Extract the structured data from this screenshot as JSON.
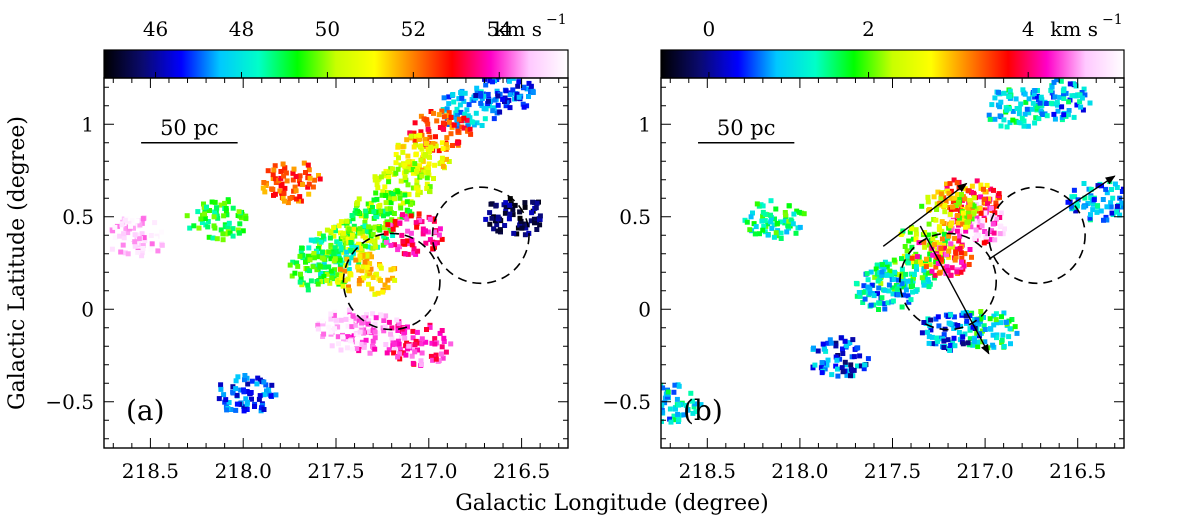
{
  "figure": {
    "xlabel": "Galactic Longitude (degree)",
    "ylabel": "Galactic Latitude (degree)"
  },
  "chart_data": [
    {
      "type": "heatmap",
      "panel_label": "(a)",
      "quantity": "velocity",
      "colorbar": {
        "ticks": [
          "46",
          "48",
          "50",
          "52",
          "54"
        ],
        "tick_values": [
          46,
          48,
          50,
          52,
          54
        ],
        "range": [
          44.8,
          55.6
        ],
        "unit": "km s",
        "unit_exp": "−1",
        "colors": [
          "#000000",
          "#0a0a6e",
          "#0000ff",
          "#00c8ff",
          "#00ffc8",
          "#00ff00",
          "#c8ff00",
          "#ffff00",
          "#ff8000",
          "#ff0000",
          "#ff00c8",
          "#ffc8ff",
          "#ffffff"
        ]
      },
      "xlim": [
        218.75,
        216.25
      ],
      "ylim": [
        -0.75,
        1.25
      ],
      "xticks": [
        "218.5",
        "218.0",
        "217.5",
        "217.0",
        "216.5"
      ],
      "xtick_values": [
        218.5,
        218.0,
        217.5,
        217.0,
        216.5
      ],
      "yticks": [
        "−0.5",
        "0",
        "0.5",
        "1"
      ],
      "ytick_values": [
        -0.5,
        0,
        0.5,
        1
      ],
      "scalebar": {
        "label": "50 pc",
        "from_l": 218.55,
        "to_l": 218.03,
        "b": 0.9
      },
      "circles": [
        {
          "l": 217.2,
          "b": 0.15,
          "r": 0.26
        },
        {
          "l": 216.72,
          "b": 0.4,
          "r": 0.26
        }
      ],
      "clumps": [
        {
          "l": 216.8,
          "b": 1.1,
          "v": 47.5
        },
        {
          "l": 216.6,
          "b": 1.18,
          "v": 46.8
        },
        {
          "l": 216.95,
          "b": 0.98,
          "v": 52.5
        },
        {
          "l": 217.05,
          "b": 0.85,
          "v": 51.0
        },
        {
          "l": 217.15,
          "b": 0.7,
          "v": 50.3
        },
        {
          "l": 217.25,
          "b": 0.55,
          "v": 49.8
        },
        {
          "l": 217.35,
          "b": 0.45,
          "v": 49.0
        },
        {
          "l": 217.45,
          "b": 0.38,
          "v": 50.5
        },
        {
          "l": 217.55,
          "b": 0.3,
          "v": 48.5
        },
        {
          "l": 217.6,
          "b": 0.22,
          "v": 49.5
        },
        {
          "l": 217.35,
          "b": 0.2,
          "v": 51.2
        },
        {
          "l": 217.1,
          "b": 0.42,
          "v": 53.5
        },
        {
          "l": 217.3,
          "b": -0.12,
          "v": 54.3
        },
        {
          "l": 217.05,
          "b": -0.18,
          "v": 53.8
        },
        {
          "l": 217.45,
          "b": -0.1,
          "v": 54.8
        },
        {
          "l": 216.55,
          "b": 0.52,
          "v": 45.5
        },
        {
          "l": 218.15,
          "b": 0.5,
          "v": 49.2
        },
        {
          "l": 217.75,
          "b": 0.7,
          "v": 52.3
        },
        {
          "l": 218.6,
          "b": 0.4,
          "v": 55.0
        },
        {
          "l": 218.0,
          "b": -0.45,
          "v": 46.8
        }
      ]
    },
    {
      "type": "heatmap",
      "panel_label": "(b)",
      "quantity": "velocity dispersion",
      "colorbar": {
        "ticks": [
          "0",
          "2",
          "4"
        ],
        "tick_values": [
          0,
          2,
          4
        ],
        "range": [
          -0.6,
          5.2
        ],
        "unit": "km s",
        "unit_exp": "−1",
        "colors": [
          "#000000",
          "#0a0a6e",
          "#0000ff",
          "#00c8ff",
          "#00ffc8",
          "#00ff00",
          "#c8ff00",
          "#ffff00",
          "#ff8000",
          "#ff0000",
          "#ff00c8",
          "#ffc8ff",
          "#ffffff"
        ]
      },
      "xlim": [
        218.75,
        216.25
      ],
      "ylim": [
        -0.75,
        1.25
      ],
      "xticks": [
        "218.5",
        "218.0",
        "217.5",
        "217.0",
        "216.5"
      ],
      "xtick_values": [
        218.5,
        218.0,
        217.5,
        217.0,
        216.5
      ],
      "yticks": [
        "−0.5",
        "0",
        "0.5",
        "1"
      ],
      "ytick_values": [
        -0.5,
        0,
        0.5,
        1
      ],
      "scalebar": {
        "label": "50 pc",
        "from_l": 218.55,
        "to_l": 218.03,
        "b": 0.9
      },
      "circles": [
        {
          "l": 217.2,
          "b": 0.15,
          "r": 0.26
        },
        {
          "l": 216.72,
          "b": 0.4,
          "r": 0.26
        }
      ],
      "arrows": [
        {
          "from": [
            217.55,
            0.34
          ],
          "to": [
            217.1,
            0.68
          ]
        },
        {
          "from": [
            217.35,
            0.45
          ],
          "to": [
            216.98,
            -0.24
          ]
        },
        {
          "from": [
            216.98,
            0.27
          ],
          "to": [
            216.3,
            0.72
          ]
        }
      ],
      "clumps": [
        {
          "l": 216.85,
          "b": 1.1,
          "v": 1.2
        },
        {
          "l": 216.6,
          "b": 1.15,
          "v": 0.9
        },
        {
          "l": 217.1,
          "b": 0.62,
          "v": 3.5
        },
        {
          "l": 217.05,
          "b": 0.48,
          "v": 4.3
        },
        {
          "l": 217.2,
          "b": 0.55,
          "v": 2.6
        },
        {
          "l": 217.35,
          "b": 0.35,
          "v": 2.2
        },
        {
          "l": 217.45,
          "b": 0.2,
          "v": 1.6
        },
        {
          "l": 217.55,
          "b": 0.12,
          "v": 1.0
        },
        {
          "l": 217.25,
          "b": 0.3,
          "v": 3.8
        },
        {
          "l": 217.0,
          "b": -0.1,
          "v": 1.4
        },
        {
          "l": 217.2,
          "b": -0.1,
          "v": 0.6
        },
        {
          "l": 218.15,
          "b": 0.5,
          "v": 1.5
        },
        {
          "l": 218.7,
          "b": -0.5,
          "v": 1.1
        },
        {
          "l": 216.4,
          "b": 0.6,
          "v": 0.8
        },
        {
          "l": 217.8,
          "b": -0.25,
          "v": 0.5
        }
      ]
    }
  ]
}
